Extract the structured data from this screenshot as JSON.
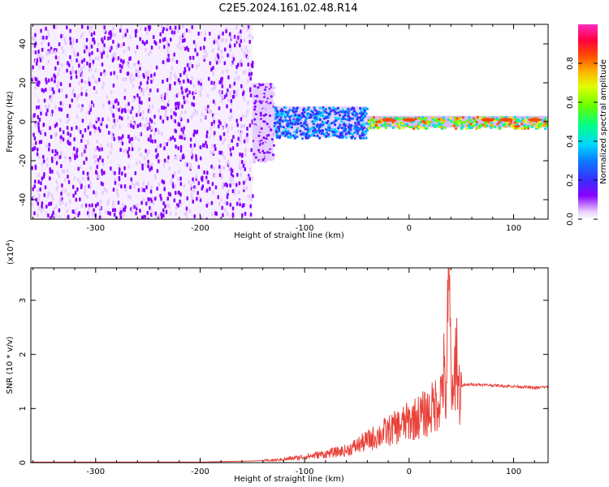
{
  "title": "C2E5.2024.161.02.48.R14",
  "chart_data": [
    {
      "type": "heatmap",
      "xlabel": "Height of straight line (km)",
      "ylabel": "Frequency (Hz)",
      "xlim": [
        -362,
        133
      ],
      "ylim": [
        -50,
        50
      ],
      "xticks": [
        -300,
        -200,
        -100,
        0,
        100
      ],
      "yticks": [
        -40,
        -20,
        0,
        20,
        40
      ],
      "colorbar": {
        "label": "Normalized spectral amplitude",
        "range": [
          0.0,
          1.0
        ],
        "ticks": [
          0.0,
          0.2,
          0.4,
          0.6,
          0.8
        ],
        "colormap": [
          "#ffffff",
          "#d9b8ff",
          "#7f00ff",
          "#3a3aff",
          "#00c8ff",
          "#00ff80",
          "#80ff00",
          "#ffd000",
          "#ff6000",
          "#ff0040",
          "#ff3cc8"
        ]
      },
      "regions": [
        {
          "x_range": [
            -362,
            -150
          ],
          "freq_range": [
            -50,
            50
          ],
          "amplitude": [
            0.05,
            0.2
          ]
        },
        {
          "x_range": [
            -150,
            -130
          ],
          "freq_range": [
            -20,
            20
          ],
          "amplitude": [
            0.05,
            0.15
          ]
        },
        {
          "x_range": [
            -130,
            -40
          ],
          "freq_range": [
            -8,
            8
          ],
          "amplitude": [
            0.2,
            0.45
          ]
        },
        {
          "x_range": [
            -40,
            133
          ],
          "freq_range": [
            -3,
            3
          ],
          "amplitude": [
            0.4,
            0.9
          ]
        }
      ],
      "peaks": [
        {
          "x": -20,
          "freq": 1,
          "amplitude": 0.9
        },
        {
          "x": 0,
          "freq": 1,
          "amplitude": 0.9
        },
        {
          "x": 75,
          "freq": 1,
          "amplitude": 0.9
        },
        {
          "x": 93,
          "freq": 1,
          "amplitude": 0.9
        },
        {
          "x": 120,
          "freq": 1,
          "amplitude": 0.9
        }
      ]
    },
    {
      "type": "line",
      "xlabel": "Height of straight line (km)",
      "ylabel": "SNR (10 * v/v)",
      "y_multiplier": "(x10",
      "y_multiplier_exp": "4",
      "xlim": [
        -362,
        133
      ],
      "ylim": [
        0,
        3.6
      ],
      "xticks": [
        -300,
        -200,
        -100,
        0,
        100
      ],
      "yticks": [
        0,
        1,
        2,
        3
      ],
      "color": "#e8423a",
      "series": [
        {
          "x": [
            -362,
            -200,
            -150,
            -130,
            -115,
            -100,
            -80,
            -60,
            -50,
            -40,
            -30,
            -20,
            -10,
            0,
            10,
            20,
            25,
            30,
            33,
            35,
            38,
            40,
            42,
            45,
            47,
            50,
            60,
            70,
            80,
            90,
            100,
            110,
            120,
            125,
            133
          ],
          "y": [
            0.01,
            0.01,
            0.03,
            0.05,
            0.08,
            0.12,
            0.18,
            0.25,
            0.35,
            0.45,
            0.55,
            0.65,
            0.75,
            0.85,
            0.95,
            1.05,
            1.2,
            1.35,
            1.9,
            1.2,
            3.6,
            2.1,
            1.0,
            2.6,
            1.5,
            1.42,
            1.45,
            1.44,
            1.43,
            1.42,
            1.41,
            1.4,
            1.38,
            1.39,
            1.4
          ]
        }
      ]
    }
  ]
}
